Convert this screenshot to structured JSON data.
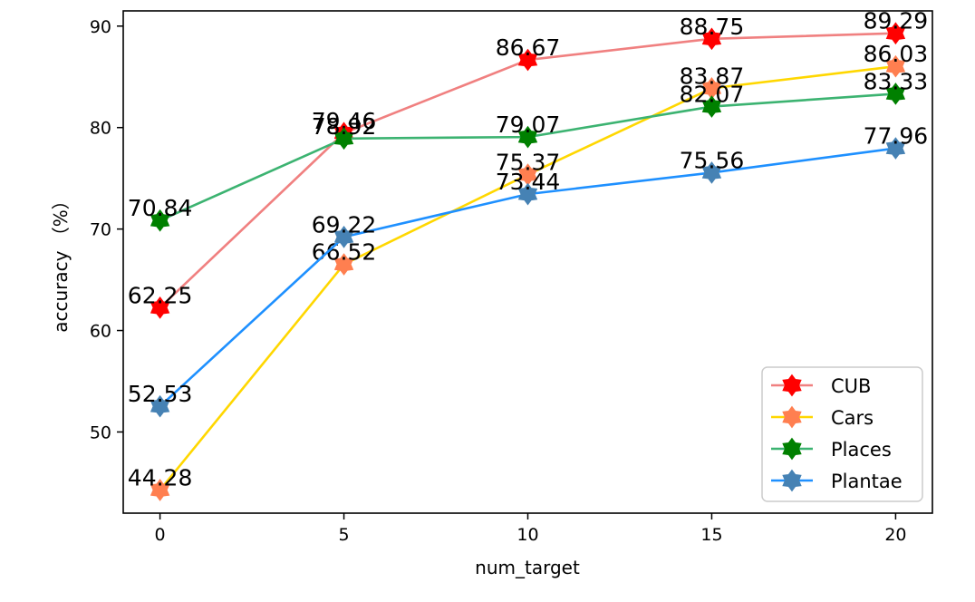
{
  "chart_data": {
    "type": "line",
    "title": "",
    "xlabel": "num_target",
    "ylabel": "accuracy （%）",
    "x": [
      0,
      5,
      10,
      15,
      20
    ],
    "xlim": [
      -1,
      21
    ],
    "ylim": [
      42,
      91.5
    ],
    "xticks": [
      "0",
      "5",
      "10",
      "15",
      "20"
    ],
    "yticks": [
      "50",
      "60",
      "70",
      "80",
      "90"
    ],
    "grid": false,
    "legend_position": "lower-right",
    "series": [
      {
        "name": "CUB",
        "values": [
          62.25,
          79.46,
          86.67,
          88.75,
          89.29
        ],
        "labels": [
          "62.25",
          "79.46",
          "86.67",
          "88.75",
          "89.29"
        ],
        "line_color": "#f08080",
        "marker_color": "#ff0000"
      },
      {
        "name": "Cars",
        "values": [
          44.28,
          66.52,
          75.37,
          83.87,
          86.03
        ],
        "labels": [
          "44.28",
          "66.52",
          "75.37",
          "83.87",
          "86.03"
        ],
        "line_color": "#ffd700",
        "marker_color": "#ff7f50"
      },
      {
        "name": "Places",
        "values": [
          70.84,
          78.92,
          79.07,
          82.07,
          83.33
        ],
        "labels": [
          "70.84",
          "78.92",
          "79.07",
          "82.07",
          "83.33"
        ],
        "line_color": "#3cb371",
        "marker_color": "#008000"
      },
      {
        "name": "Plantae",
        "values": [
          52.53,
          69.22,
          73.44,
          75.56,
          77.96
        ],
        "labels": [
          "52.53",
          "69.22",
          "73.44",
          "75.56",
          "77.96"
        ],
        "line_color": "#1e90ff",
        "marker_color": "#4682b4"
      }
    ]
  }
}
